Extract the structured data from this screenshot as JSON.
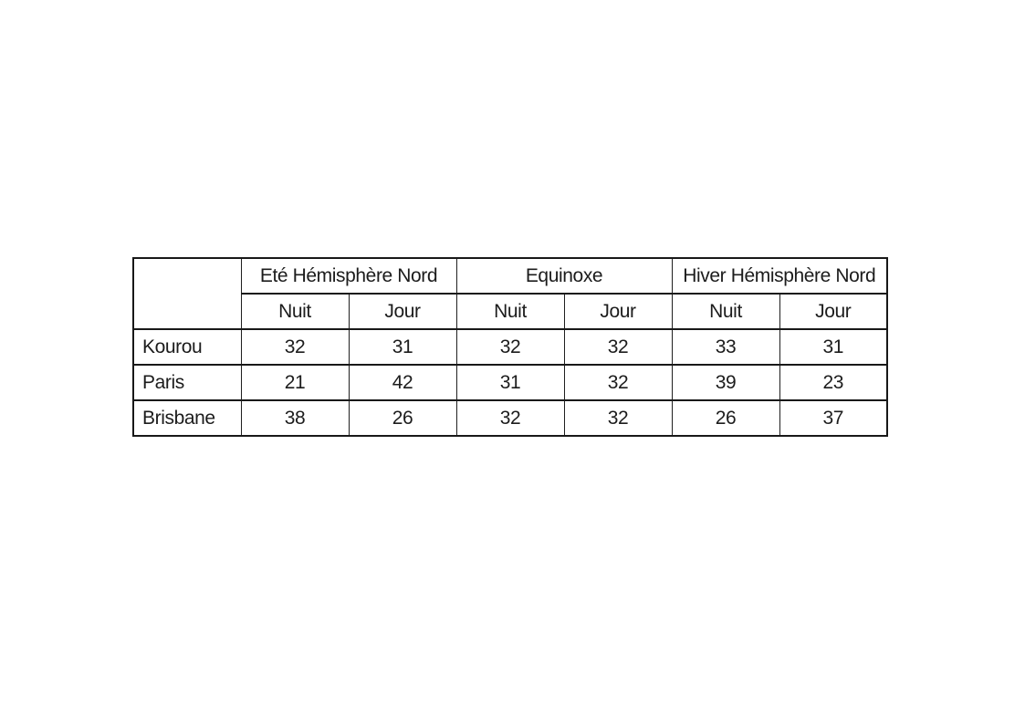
{
  "table": {
    "corner": "",
    "groups": [
      {
        "label": "Eté Hémisphère Nord"
      },
      {
        "label": "Equinoxe"
      },
      {
        "label": "Hiver Hémisphère Nord"
      }
    ],
    "subheaders": [
      "Nuit",
      "Jour",
      "Nuit",
      "Jour",
      "Nuit",
      "Jour"
    ],
    "rows": [
      {
        "label": "Kourou",
        "values": [
          32,
          31,
          32,
          32,
          33,
          31
        ]
      },
      {
        "label": "Paris",
        "values": [
          21,
          42,
          31,
          32,
          39,
          23
        ]
      },
      {
        "label": "Brisbane",
        "values": [
          38,
          26,
          32,
          32,
          26,
          37
        ]
      }
    ],
    "border_color": "#181818",
    "text_color": "#1c1c1c",
    "background_color": "#ffffff"
  },
  "chart_data": {
    "type": "table",
    "column_groups": [
      "Eté Hémisphère Nord",
      "Equinoxe",
      "Hiver Hémisphère Nord"
    ],
    "columns": [
      "",
      "Nuit",
      "Jour",
      "Nuit",
      "Jour",
      "Nuit",
      "Jour"
    ],
    "rows": [
      [
        "Kourou",
        32,
        31,
        32,
        32,
        33,
        31
      ],
      [
        "Paris",
        21,
        42,
        31,
        32,
        39,
        23
      ],
      [
        "Brisbane",
        38,
        26,
        32,
        32,
        26,
        37
      ]
    ]
  }
}
